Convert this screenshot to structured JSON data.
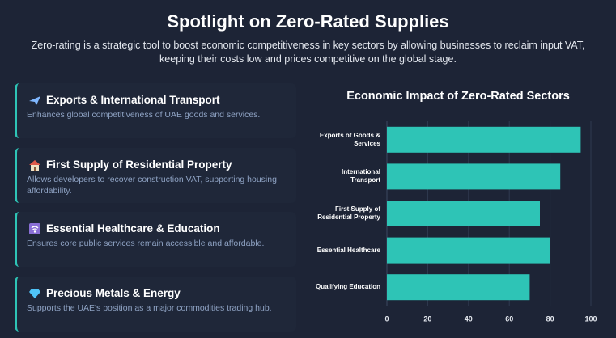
{
  "header": {
    "title": "Spotlight on Zero-Rated Supplies",
    "subtitle": "Zero-rating is a strategic tool to boost economic competitiveness in key sectors by allowing businesses to reclaim input VAT, keeping their costs low and prices competitive on the global stage."
  },
  "cards": [
    {
      "title": "Exports & International Transport",
      "description": "Enhances global competitiveness of UAE goods and services."
    },
    {
      "title": "First Supply of Residential Property",
      "description": "Allows developers to recover construction VAT, supporting housing affordability."
    },
    {
      "title": "Essential Healthcare & Education",
      "description": "Ensures core public services remain accessible and affordable."
    },
    {
      "title": "Precious Metals & Energy",
      "description": "Supports the UAE's position as a major commodities trading hub."
    }
  ],
  "chart_data": {
    "type": "bar",
    "orientation": "horizontal",
    "title": "Economic Impact of Zero-Rated Sectors",
    "categories": [
      "Exports of Goods & Services",
      "International Transport",
      "First Supply of Residential Property",
      "Essential Healthcare",
      "Qualifying Education"
    ],
    "values": [
      95,
      85,
      75,
      80,
      70
    ],
    "color": "#2ec4b6",
    "xlim": [
      0,
      100
    ],
    "xticks": [
      0,
      20,
      40,
      60,
      80,
      100
    ],
    "grid": true
  }
}
